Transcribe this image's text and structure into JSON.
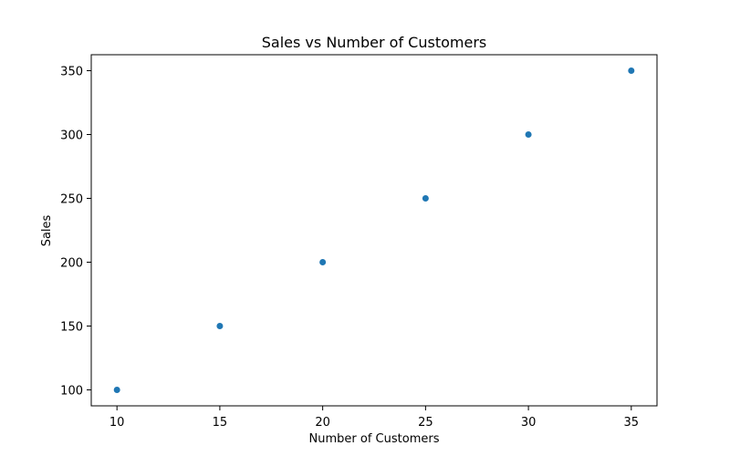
{
  "chart_data": {
    "type": "scatter",
    "title": "Sales vs Number of Customers",
    "xlabel": "Number of Customers",
    "ylabel": "Sales",
    "x": [
      10,
      15,
      20,
      25,
      30,
      35
    ],
    "y": [
      100,
      150,
      200,
      250,
      300,
      350
    ],
    "xlim": [
      8.75,
      36.25
    ],
    "ylim": [
      87.5,
      362.5
    ],
    "xticks": [
      10,
      15,
      20,
      25,
      30,
      35
    ],
    "yticks": [
      100,
      150,
      200,
      250,
      300,
      350
    ],
    "grid": false,
    "point_color": "#1f77b4"
  }
}
